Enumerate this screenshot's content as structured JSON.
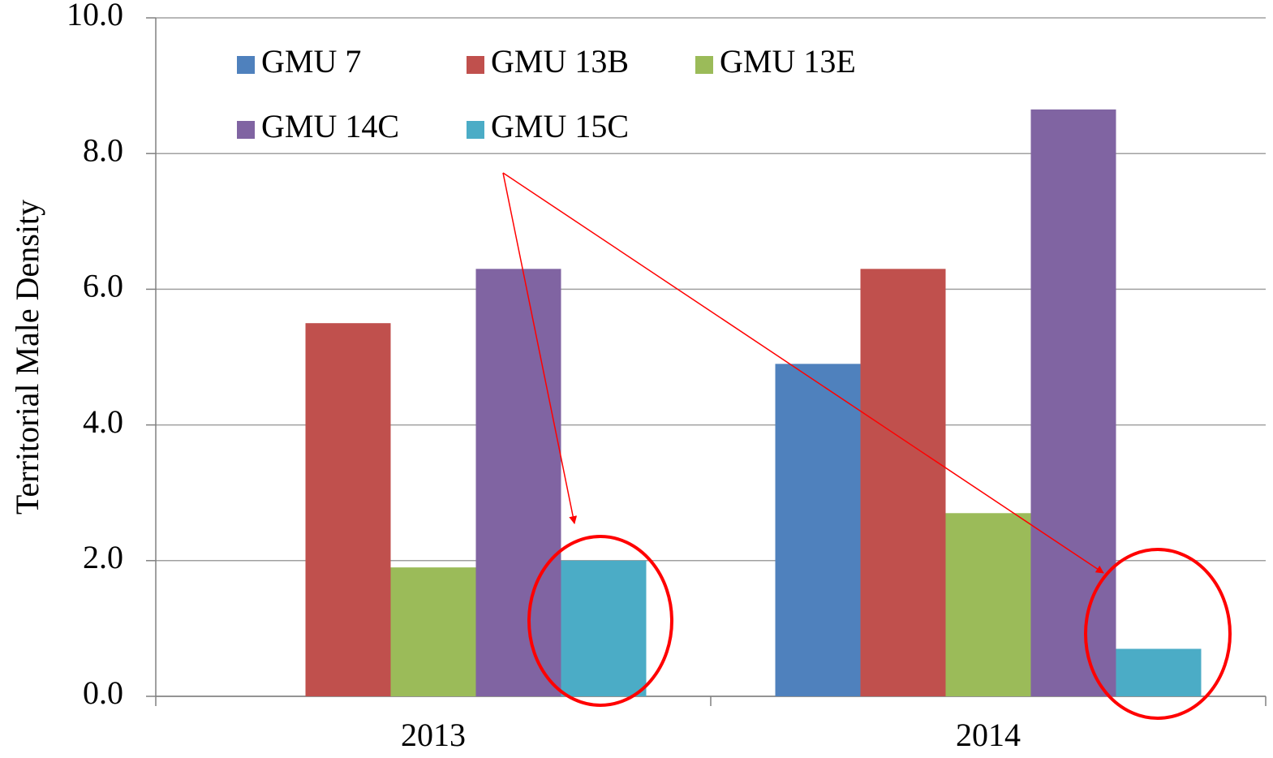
{
  "chart_data": {
    "type": "bar",
    "y_label": "Territorial Male Density",
    "categories": [
      "2013",
      "2014"
    ],
    "series": [
      {
        "name": "GMU 7",
        "color": "#4f81bd",
        "values": [
          null,
          4.9
        ]
      },
      {
        "name": "GMU 13B",
        "color": "#c0504d",
        "values": [
          5.5,
          6.3
        ]
      },
      {
        "name": "GMU 13E",
        "color": "#9bbb59",
        "values": [
          1.9,
          2.7
        ]
      },
      {
        "name": "GMU 14C",
        "color": "#8064a2",
        "values": [
          6.3,
          8.65
        ]
      },
      {
        "name": "GMU 15C",
        "color": "#4bacc6",
        "values": [
          2.0,
          0.7
        ]
      }
    ],
    "ylim": [
      0,
      10
    ],
    "yticks": [
      {
        "value": 0,
        "label": "0.0"
      },
      {
        "value": 2,
        "label": "2.0"
      },
      {
        "value": 4,
        "label": "4.0"
      },
      {
        "value": 6,
        "label": "6.0"
      },
      {
        "value": 8,
        "label": "8.0"
      },
      {
        "value": 10,
        "label": "10.0"
      }
    ],
    "grid": true
  }
}
